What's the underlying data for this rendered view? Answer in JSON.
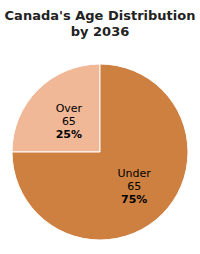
{
  "chart_data": {
    "type": "pie",
    "title": "Canada's Age Distribution\nby 2036",
    "categories": [
      "Over\n65",
      "Under\n65"
    ],
    "values": [
      25,
      75
    ],
    "value_labels": [
      "25%",
      "75%"
    ],
    "colors": [
      "#f0b896",
      "#cd8040"
    ],
    "data_labels": true
  }
}
